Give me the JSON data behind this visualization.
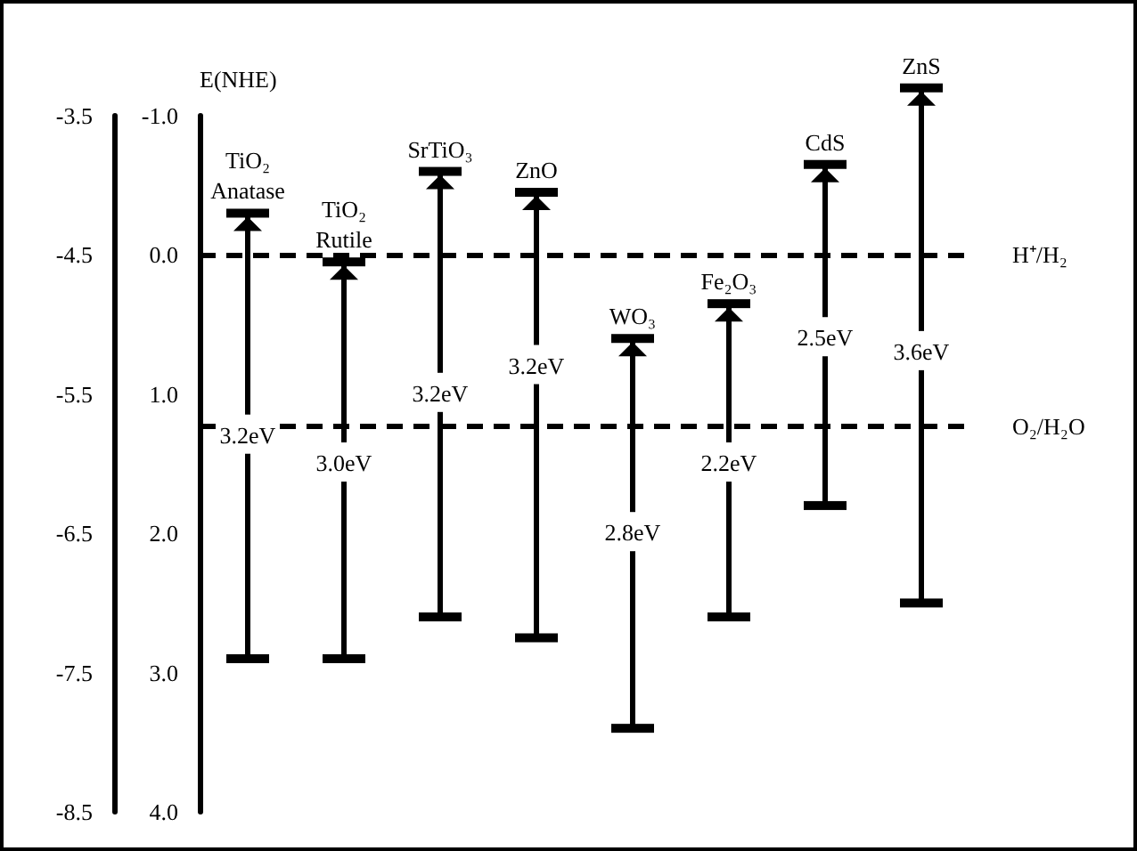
{
  "chart_data": {
    "type": "bar",
    "ylabel": "E(NHE)",
    "categories": [
      "TiO₂ Anatase",
      "TiO₂ Rutile",
      "SrTiO₃",
      "ZnO",
      "WO₃",
      "Fe₂O₃",
      "CdS",
      "ZnS"
    ],
    "base": [
      -0.3,
      0.05,
      -0.6,
      -0.45,
      0.6,
      0.35,
      -0.65,
      -1.2
    ],
    "values": [
      3.2,
      2.85,
      3.2,
      3.2,
      2.8,
      2.25,
      2.45,
      3.7
    ],
    "color": "#000000",
    "annotations": [
      {
        "text": "3.2eV",
        "x": "TiO₂ Anatase",
        "y": 1.3
      },
      {
        "text": "3.0eV",
        "x": "TiO₂ Rutile",
        "y": 1.5
      },
      {
        "text": "3.2eV",
        "x": "SrTiO₃",
        "y": 1.0
      },
      {
        "text": "3.2eV",
        "x": "ZnO",
        "y": 0.8
      },
      {
        "text": "2.8eV",
        "x": "WO₃",
        "y": 2.0
      },
      {
        "text": "2.2eV",
        "x": "Fe₂O₃",
        "y": 1.5
      },
      {
        "text": "2.5eV",
        "x": "CdS",
        "y": 0.6
      },
      {
        "text": "3.6eV",
        "x": "ZnS",
        "y": 0.7
      }
    ],
    "ylim": [
      4,
      -1
    ],
    "yticks": [
      {
        "value": -1,
        "label": "-1.0"
      },
      {
        "value": 0,
        "label": "0.0"
      },
      {
        "value": 1,
        "label": "1.0"
      },
      {
        "value": 2,
        "label": "2.0"
      },
      {
        "value": 3,
        "label": "3.0"
      },
      {
        "value": 4,
        "label": "4.0"
      }
    ],
    "y2lim": [
      -8.5,
      -3.5
    ],
    "y2ticks": [
      -3.5,
      -4.5,
      -5.5,
      -6.5,
      -7.5,
      -8.5
    ],
    "ref_lines": [
      {
        "axis": "y",
        "value": 0,
        "label": "H⁺/H₂",
        "line_style": "dashed"
      },
      {
        "axis": "y",
        "value": 1.23,
        "label": "O₂/H₂O",
        "line_style": "dashed"
      }
    ]
  }
}
